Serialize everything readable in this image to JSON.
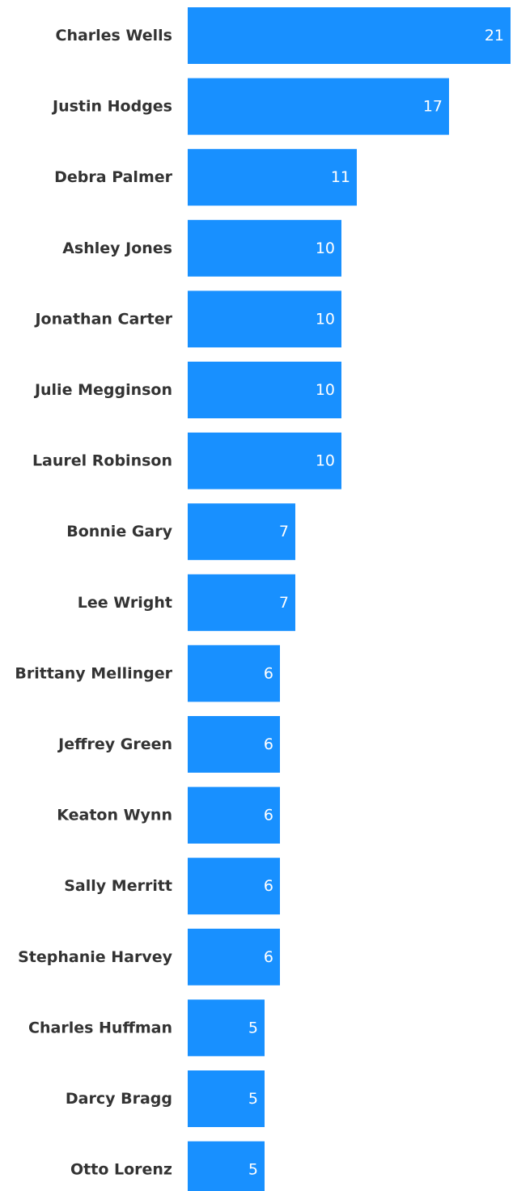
{
  "chart_data": {
    "type": "bar",
    "orientation": "horizontal",
    "categories": [
      "Charles Wells",
      "Justin Hodges",
      "Debra Palmer",
      "Ashley Jones",
      "Jonathan Carter",
      "Julie Megginson",
      "Laurel Robinson",
      "Bonnie Gary",
      "Lee Wright",
      "Brittany Mellinger",
      "Jeffrey Green",
      "Keaton Wynn",
      "Sally Merritt",
      "Stephanie Harvey",
      "Charles Huffman",
      "Darcy Bragg",
      "Otto Lorenz"
    ],
    "values": [
      21,
      17,
      11,
      10,
      10,
      10,
      10,
      7,
      7,
      6,
      6,
      6,
      6,
      6,
      5,
      5,
      5
    ],
    "data_labels": [
      "21",
      "17",
      "11",
      "10",
      "10",
      "10",
      "10",
      "7",
      "7",
      "6",
      "6",
      "6",
      "6",
      "6",
      "5",
      "5",
      "5"
    ],
    "title": "",
    "xlabel": "",
    "ylabel": "",
    "xlim": [
      0,
      21
    ],
    "grid": false,
    "legend": "none",
    "colors": {
      "bar": "#1890ff",
      "label": "#333333",
      "value_label": "#ffffff",
      "background": "#ffffff"
    }
  }
}
